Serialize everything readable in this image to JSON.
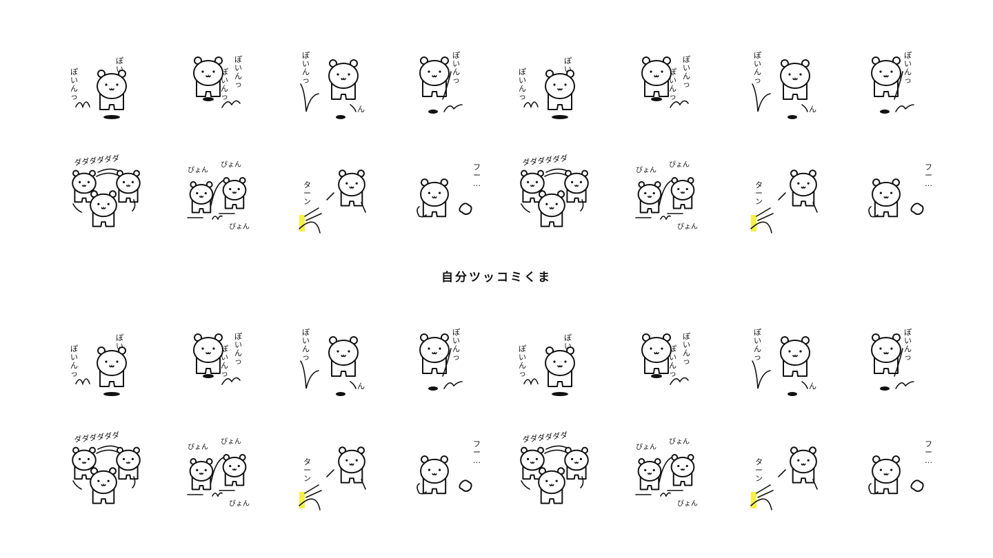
{
  "title": "自分ツッコミくま",
  "colors": {
    "background": "#ffffff",
    "ink": "#111111",
    "accent": "#f7f13a",
    "gray": "#8c8c8c"
  },
  "sticker_text": {
    "bounce": "ぽいんっ",
    "run": "ダダダダダダ",
    "hop": "ぴょん",
    "dash": "ターン",
    "sigh": "フー…"
  },
  "blocks": [
    {
      "rows": [
        {
          "cells": [
            "bounce-a",
            "bounce-b",
            "bounce-c",
            "bounce-d",
            "bounce-a",
            "bounce-b",
            "bounce-c",
            "bounce-d"
          ]
        },
        {
          "cells": [
            "run",
            "hop",
            "dash",
            "sigh",
            "run",
            "hop",
            "dash",
            "sigh"
          ]
        }
      ]
    },
    {
      "rows": [
        {
          "cells": [
            "bounce-a",
            "bounce-b",
            "bounce-c",
            "bounce-d",
            "bounce-a",
            "bounce-b",
            "bounce-c",
            "bounce-d"
          ]
        },
        {
          "cells": [
            "run",
            "hop",
            "dash",
            "sigh",
            "run",
            "hop",
            "dash",
            "sigh"
          ]
        }
      ]
    }
  ]
}
